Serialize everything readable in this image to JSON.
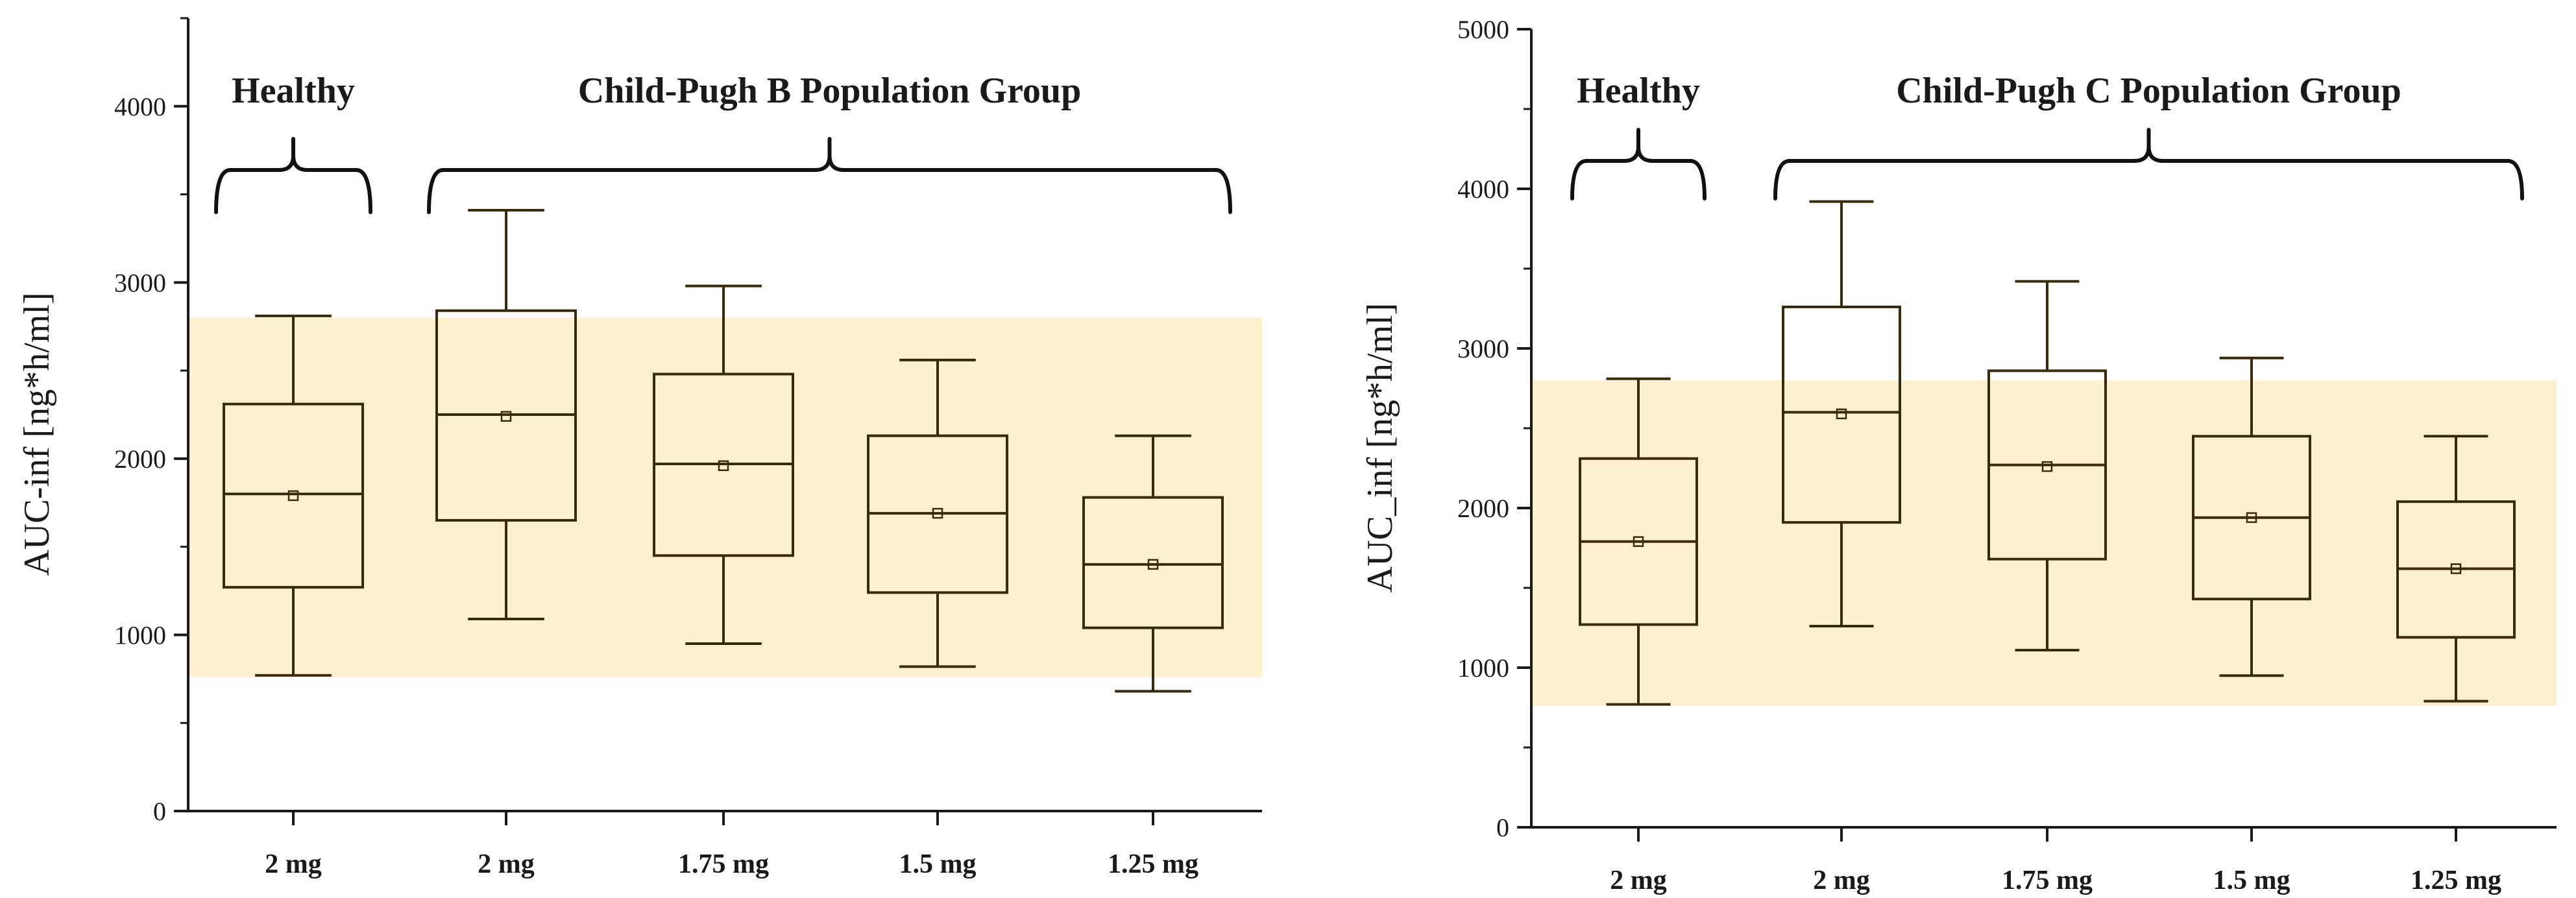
{
  "chart_data": [
    {
      "type": "box",
      "ylabel": "AUC-inf [ng*h/ml]",
      "xlabel": "",
      "ylim": [
        0,
        4500
      ],
      "yticks": [
        0,
        1000,
        2000,
        3000,
        4000
      ],
      "ytick_labels": [
        "0",
        "1000",
        "2000",
        "3000",
        "4000"
      ],
      "reference_band": [
        760,
        2800
      ],
      "reference_band_color": "#fdf0cf",
      "groups": [
        {
          "label": "Healthy",
          "members": [
            0
          ]
        },
        {
          "label": "Child-Pugh B Population Group",
          "members": [
            1,
            2,
            3,
            4
          ]
        }
      ],
      "categories": [
        "2 mg",
        "2 mg",
        "1.75 mg",
        "1.5 mg",
        "1.25 mg"
      ],
      "boxes": [
        {
          "whisker_low": 770,
          "q1": 1270,
          "median": 1800,
          "mean": 1790,
          "q3": 2310,
          "whisker_high": 2810
        },
        {
          "whisker_low": 1090,
          "q1": 1650,
          "median": 2250,
          "mean": 2240,
          "q3": 2840,
          "whisker_high": 3410
        },
        {
          "whisker_low": 950,
          "q1": 1450,
          "median": 1970,
          "mean": 1960,
          "q3": 2480,
          "whisker_high": 2980
        },
        {
          "whisker_low": 820,
          "q1": 1240,
          "median": 1690,
          "mean": 1690,
          "q3": 2130,
          "whisker_high": 2560
        },
        {
          "whisker_low": 680,
          "q1": 1040,
          "median": 1400,
          "mean": 1400,
          "q3": 1780,
          "whisker_high": 2130
        }
      ]
    },
    {
      "type": "box",
      "ylabel": "AUC_inf [ng*h/ml]",
      "xlabel": "",
      "ylim": [
        0,
        5000
      ],
      "yticks": [
        0,
        1000,
        2000,
        3000,
        4000,
        5000
      ],
      "ytick_labels": [
        "0",
        "1000",
        "2000",
        "3000",
        "4000",
        "5000"
      ],
      "reference_band": [
        760,
        2800
      ],
      "reference_band_color": "#fdf0cf",
      "groups": [
        {
          "label": "Healthy",
          "members": [
            0
          ]
        },
        {
          "label": "Child-Pugh C Population Group",
          "members": [
            1,
            2,
            3,
            4
          ]
        }
      ],
      "categories": [
        "2 mg",
        "2 mg",
        "1.75 mg",
        "1.5 mg",
        "1.25 mg"
      ],
      "boxes": [
        {
          "whisker_low": 770,
          "q1": 1270,
          "median": 1790,
          "mean": 1790,
          "q3": 2310,
          "whisker_high": 2810
        },
        {
          "whisker_low": 1260,
          "q1": 1910,
          "median": 2600,
          "mean": 2590,
          "q3": 3260,
          "whisker_high": 3920
        },
        {
          "whisker_low": 1110,
          "q1": 1680,
          "median": 2270,
          "mean": 2260,
          "q3": 2860,
          "whisker_high": 3420
        },
        {
          "whisker_low": 950,
          "q1": 1430,
          "median": 1940,
          "mean": 1940,
          "q3": 2450,
          "whisker_high": 2940
        },
        {
          "whisker_low": 790,
          "q1": 1190,
          "median": 1620,
          "mean": 1620,
          "q3": 2040,
          "whisker_high": 2450
        }
      ]
    }
  ],
  "colors": {
    "axis": "#1a1a1a",
    "box_stroke": "#3a2a0c",
    "band": "#fdf0cf"
  }
}
